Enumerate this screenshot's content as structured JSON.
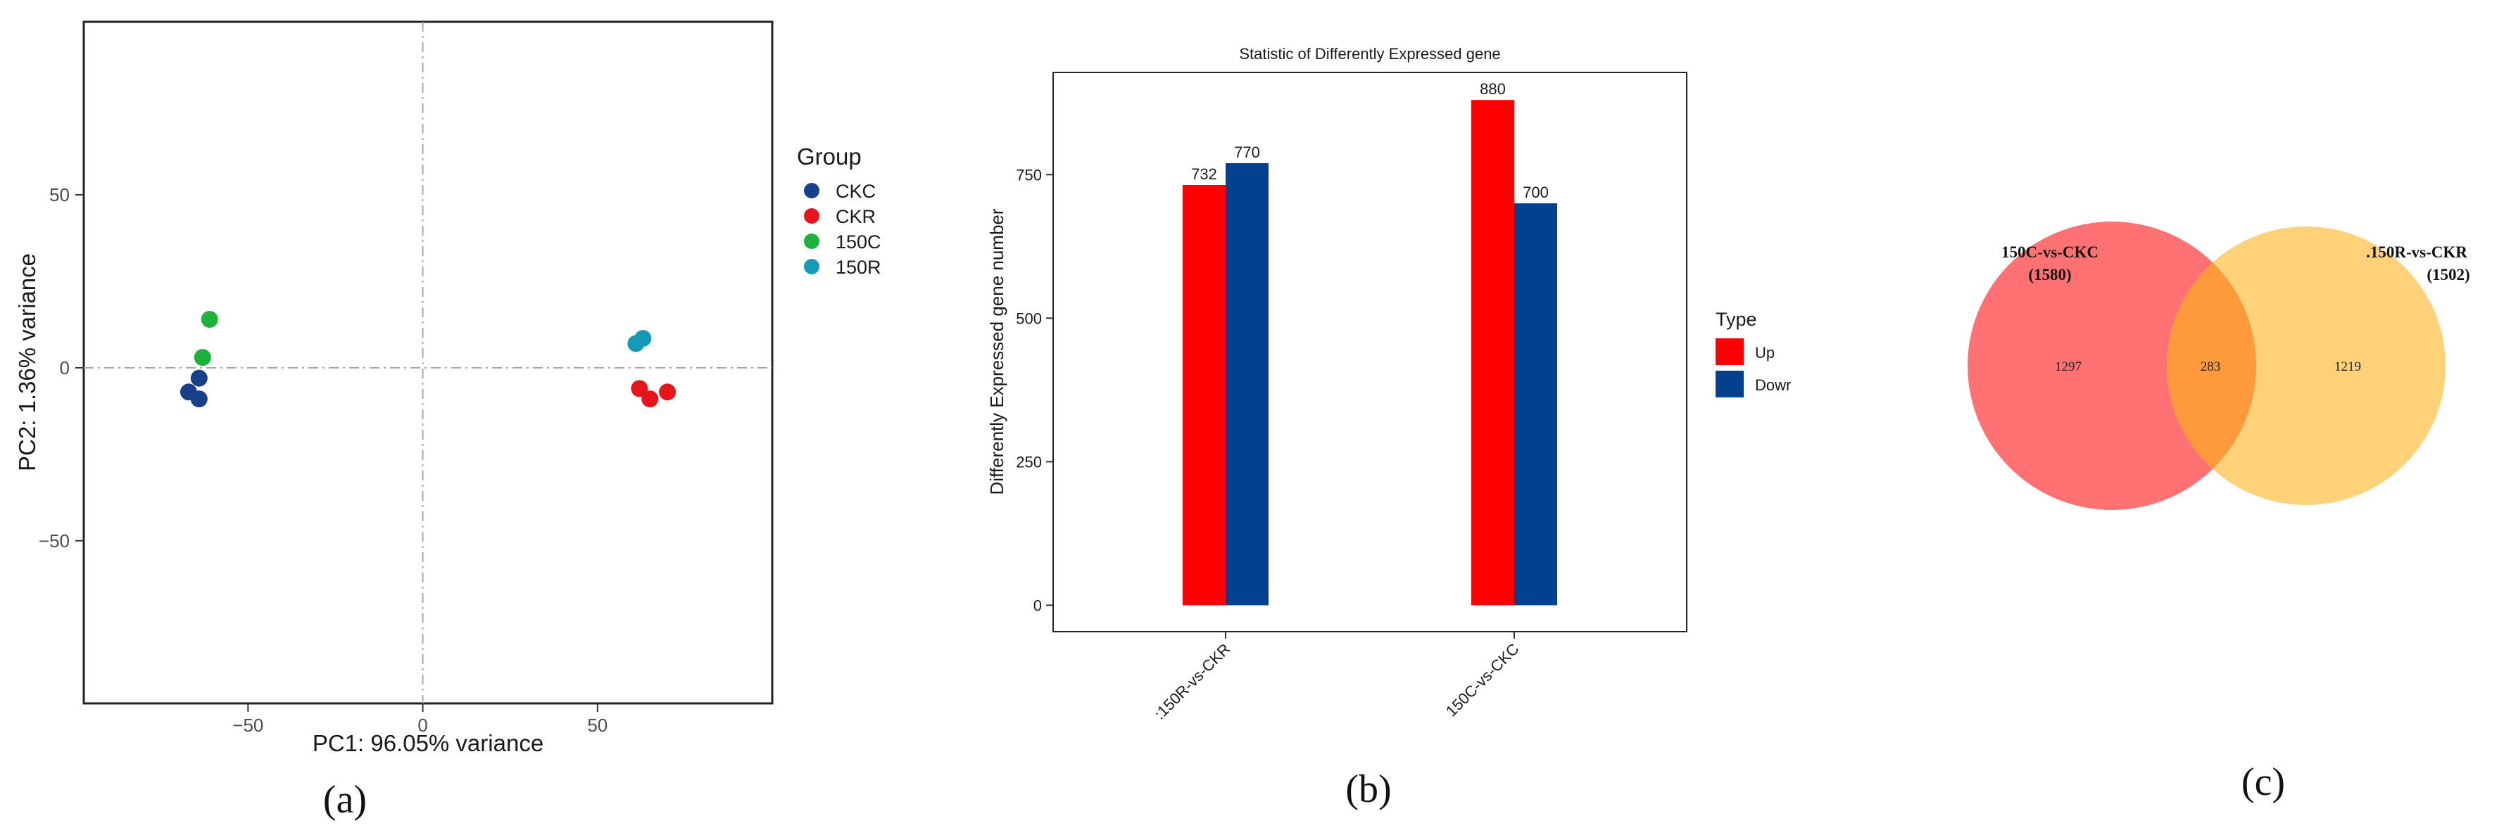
{
  "chart_data": [
    {
      "type": "scatter",
      "title": "",
      "xlabel": "PC1: 96.05% variance",
      "ylabel": "PC2: 1.36% variance",
      "xlim": [
        -97,
        100
      ],
      "ylim": [
        -97,
        100
      ],
      "xticks": [
        -50,
        0,
        50
      ],
      "yticks": [
        -50,
        0,
        50
      ],
      "xtick_labels": [
        "−50",
        "0",
        "50"
      ],
      "ytick_labels": [
        "−50",
        "0",
        "50"
      ],
      "reference_lines": {
        "x": 0,
        "y": 0
      },
      "legend_title": "Group",
      "series": [
        {
          "name": "CKC",
          "color": "#173f8a",
          "points": [
            [
              -67,
              -7
            ],
            [
              -64,
              -3
            ],
            [
              -64,
              -9
            ]
          ]
        },
        {
          "name": "CKR",
          "color": "#e8141b",
          "points": [
            [
              62,
              -6
            ],
            [
              65,
              -9
            ],
            [
              70,
              -7
            ]
          ]
        },
        {
          "name": "150C",
          "color": "#1db23a",
          "points": [
            [
              -61,
              14
            ],
            [
              -63,
              3
            ]
          ]
        },
        {
          "name": "150R",
          "color": "#149ab8",
          "points": [
            [
              61,
              7
            ],
            [
              63,
              8.5
            ]
          ]
        }
      ],
      "panel_label": "(a)"
    },
    {
      "type": "bar",
      "title": "Statistic of Differently Expressed gene",
      "xlabel": "",
      "ylabel": "Differently Expressed gene number",
      "ylim": [
        -46,
        928
      ],
      "yticks": [
        0,
        250,
        500,
        750
      ],
      "categories": [
        "150R-vs-CKR",
        "150C-vs-CKC"
      ],
      "category_tick_labels": [
        ":150R-vs-CKR",
        "150C-vs-CKC"
      ],
      "series": [
        {
          "name": "Up",
          "color": "#ff0000",
          "values": [
            732,
            880
          ]
        },
        {
          "name": "Dowr",
          "color": "#03408d",
          "values": [
            770,
            700
          ]
        }
      ],
      "legend_title": "Type",
      "panel_label": "(b)"
    },
    {
      "type": "venn",
      "sets": [
        {
          "name": "150C-vs-CKC",
          "total_label": "(1580)",
          "total": 1580,
          "only": 1297,
          "color": "#ff7173"
        },
        {
          "name": "150R-vs-CKR",
          "label_text": ".150R-vs-CKR",
          "total_label": "(1502)",
          "total": 1502,
          "only": 1219,
          "color": "#ffd27a"
        }
      ],
      "intersection": 283,
      "intersection_color": "#ff9a3c",
      "panel_label": "(c)"
    }
  ]
}
